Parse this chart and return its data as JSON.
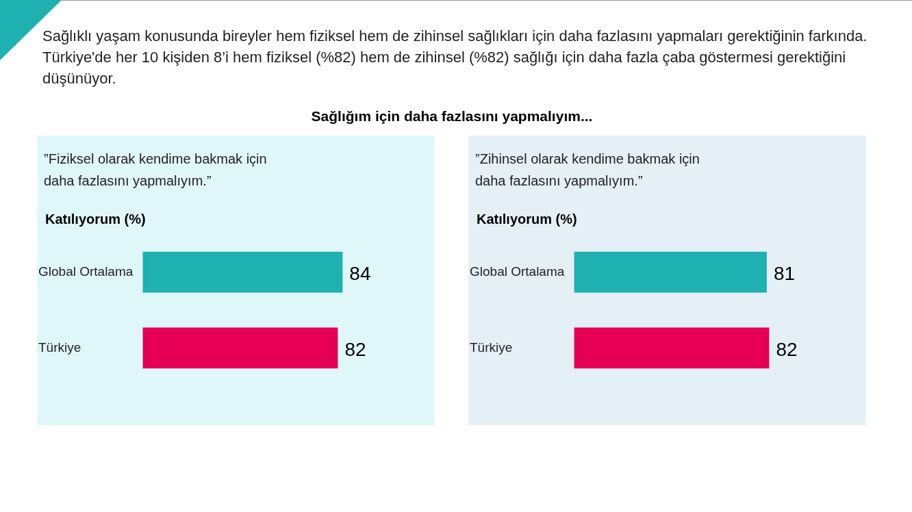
{
  "chart_data": [
    {
      "type": "bar",
      "orientation": "horizontal",
      "title": "”Fiziksel olarak kendime bakmak için daha fazlasını yapmalıyım.”",
      "xlabel": "Katılıyorum (%)",
      "annotations": [
        "Sağlıklı yaşam konusunda bireyler hem fiziksel hem de zihinsel sağlıkları için daha fazlasını yapmaları gerektiğinin farkında. Türkiye'de her 10 kişiden 8’i hem fiziksel (%82) hem de zihinsel (%82) sağlığı için daha fazla çaba göstermesi gerektiğini düşünüyor.",
        "Sağlığım için daha fazlasını yapmalıyım..."
      ],
      "categories": [
        "Global Ortalama",
        "Türkiye"
      ],
      "values": [
        84,
        82
      ],
      "colors": [
        "#1fb0b0",
        "#e50055"
      ],
      "data_labels": true,
      "legend": false
    },
    {
      "type": "bar",
      "orientation": "horizontal",
      "title": "”Zihinsel olarak kendime bakmak için daha fazlasını yapmalıyım.”",
      "xlabel": "Katılıyorum (%)",
      "categories": [
        "Global Ortalama",
        "Türkiye"
      ],
      "values": [
        81,
        82
      ],
      "colors": [
        "#1fb0b0",
        "#e50055"
      ],
      "data_labels": true,
      "legend": false
    }
  ]
}
